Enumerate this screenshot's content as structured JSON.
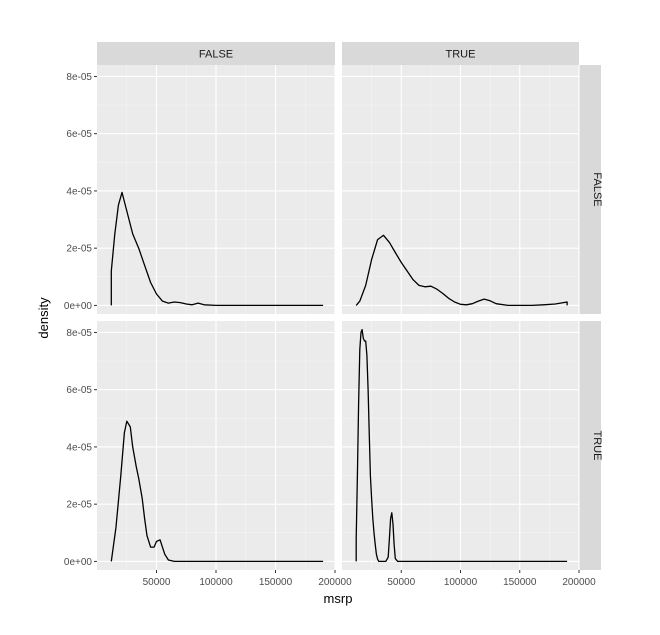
{
  "colors": {
    "panel_background": "#ebebeb",
    "grid_major": "#ffffff",
    "strip_background": "#d9d9d9",
    "curve": "#000000",
    "tick_mark": "#333333"
  },
  "chart_data": {
    "type": "line",
    "title": "",
    "xlabel": "msrp",
    "ylabel": "density",
    "xlim": [
      0,
      200000
    ],
    "ylim": [
      -3e-06,
      8.4e-05
    ],
    "x_ticks": [
      50000,
      100000,
      150000,
      200000
    ],
    "x_tick_labels": [
      "50000",
      "100000",
      "150000",
      "200000"
    ],
    "y_ticks": [
      0,
      2e-05,
      4e-05,
      6e-05,
      8e-05
    ],
    "y_tick_labels": [
      "0e+00",
      "2e-05",
      "4e-05",
      "6e-05",
      "8e-05"
    ],
    "grid": true,
    "facet_cols": [
      "FALSE",
      "TRUE"
    ],
    "facet_rows": [
      "FALSE",
      "TRUE"
    ],
    "panels": [
      {
        "col": "FALSE",
        "row": "FALSE",
        "x": [
          12000,
          15000,
          18000,
          21000,
          25000,
          30000,
          35000,
          40000,
          45000,
          50000,
          55000,
          60000,
          65000,
          70000,
          75000,
          80000,
          85000,
          90000,
          100000,
          150000,
          190000
        ],
        "y": [
          1.2e-05,
          2.5e-05,
          3.5e-05,
          3.95e-05,
          3.3e-05,
          2.5e-05,
          2e-05,
          1.4e-05,
          8e-06,
          4e-06,
          1.5e-06,
          8e-07,
          1.2e-06,
          1e-06,
          5e-07,
          2e-07,
          8e-07,
          2e-07,
          0.0,
          0.0,
          0.0
        ]
      },
      {
        "col": "TRUE",
        "row": "FALSE",
        "x": [
          12000,
          15000,
          20000,
          25000,
          30000,
          35000,
          40000,
          45000,
          50000,
          55000,
          60000,
          65000,
          70000,
          75000,
          80000,
          85000,
          90000,
          95000,
          100000,
          105000,
          110000,
          115000,
          120000,
          125000,
          130000,
          140000,
          150000,
          160000,
          170000,
          180000,
          190000
        ],
        "y": [
          0.0,
          1.5e-06,
          7e-06,
          1.6e-05,
          2.3e-05,
          2.45e-05,
          2.2e-05,
          1.85e-05,
          1.5e-05,
          1.2e-05,
          9e-06,
          7e-06,
          6.5e-06,
          6.7e-06,
          5.7e-06,
          4.2e-06,
          2.5e-06,
          1.2e-06,
          4e-07,
          2e-07,
          6e-07,
          1.5e-06,
          2.2e-06,
          1.6e-06,
          6e-07,
          0.0,
          0.0,
          0.0,
          2e-07,
          5e-07,
          1.2e-06
        ]
      },
      {
        "col": "FALSE",
        "row": "TRUE",
        "x": [
          12000,
          16000,
          20000,
          23000,
          25000,
          28000,
          30000,
          33000,
          35000,
          38000,
          40000,
          42000,
          45000,
          48000,
          50000,
          53000,
          55000,
          57000,
          60000,
          65000,
          70000,
          100000,
          150000,
          190000
        ],
        "y": [
          0.0,
          1.2e-05,
          3e-05,
          4.5e-05,
          4.9e-05,
          4.7e-05,
          4e-05,
          3.3e-05,
          2.9e-05,
          2.2e-05,
          1.5e-05,
          9e-06,
          5e-06,
          5e-06,
          7e-06,
          7.5e-06,
          5e-06,
          2.5e-06,
          5e-07,
          0.0,
          0.0,
          0.0,
          0.0,
          0.0
        ]
      },
      {
        "col": "TRUE",
        "row": "TRUE",
        "x": [
          12000,
          13000,
          14000,
          15000,
          16000,
          17000,
          18000,
          19000,
          20000,
          21000,
          22000,
          23000,
          24000,
          25000,
          26000,
          27000,
          28000,
          29000,
          30000,
          31000,
          32000,
          33000,
          34000,
          35000,
          37000,
          39000,
          40000,
          41000,
          42000,
          43000,
          44000,
          45000,
          47000,
          50000,
          100000,
          150000,
          190000
        ],
        "y": [
          8e-06,
          3e-05,
          5.5e-05,
          7.4e-05,
          8e-05,
          8.1e-05,
          7.8e-05,
          7.7e-05,
          7.7e-05,
          7.2e-05,
          6e-05,
          4.4e-05,
          3e-05,
          2.2e-05,
          1.5e-05,
          1e-05,
          6e-06,
          2.5e-06,
          8e-07,
          0.0,
          0.0,
          0.0,
          0.0,
          0.0,
          0.0,
          1.5e-06,
          8e-06,
          1.5e-05,
          1.7e-05,
          1.3e-05,
          6e-06,
          1e-06,
          0.0,
          0.0,
          0.0,
          0.0,
          0.0
        ]
      }
    ]
  }
}
